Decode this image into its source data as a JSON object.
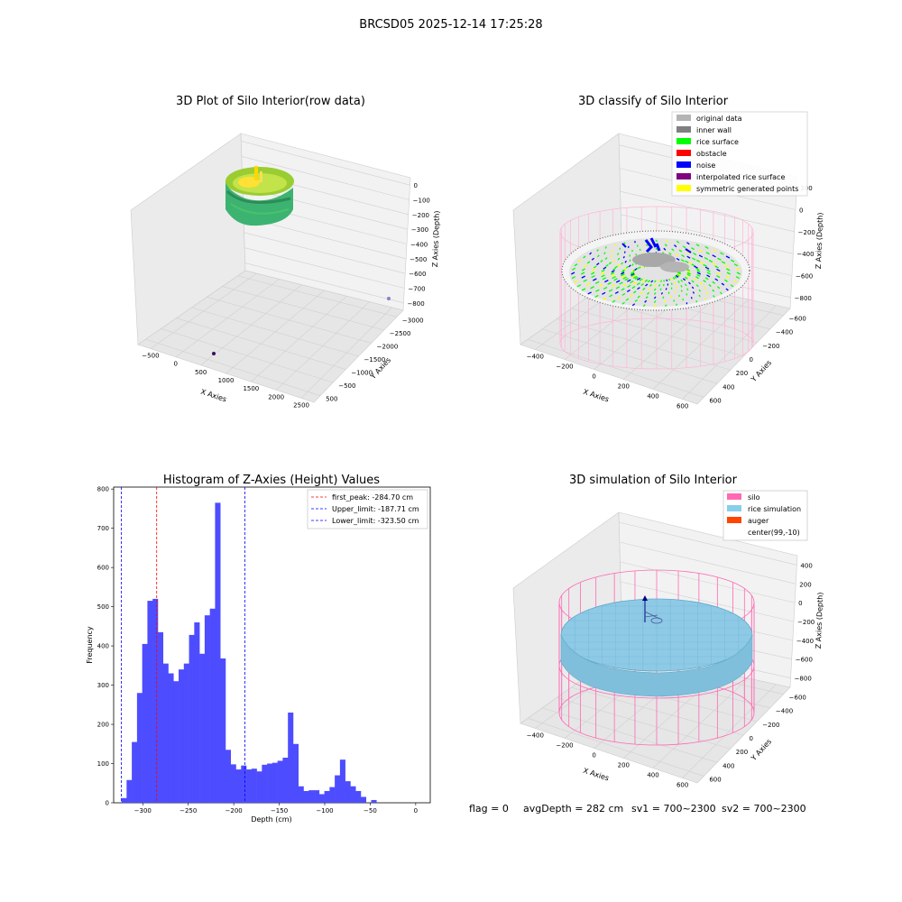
{
  "figure_title": "BRCSD05 2025-12-14 17:25:28",
  "panels": {
    "raw": {
      "title": "3D Plot of Silo Interior(row data)",
      "xlabel": "X Axies",
      "ylabel": "Y Axies",
      "zlabel": "Z Axies (Depth)",
      "xticks": [
        "−500",
        "0",
        "500",
        "1000",
        "1500",
        "2000",
        "2500"
      ],
      "yticks": [
        "500",
        "−500",
        "−1000",
        "−1500",
        "−2000",
        "−2500",
        "−3000"
      ],
      "zticks": [
        "0",
        "−100",
        "−200",
        "−300",
        "−400",
        "−500",
        "−600",
        "−700",
        "−800"
      ]
    },
    "classify": {
      "title": "3D classify of Silo Interior",
      "xlabel": "X Axies",
      "ylabel": "Y Axies",
      "zlabel": "Z Axies (Depth)",
      "xticks": [
        "−400",
        "−200",
        "0",
        "200",
        "400",
        "600"
      ],
      "yticks": [
        "600",
        "400",
        "200",
        "0",
        "−200",
        "−400",
        "−600"
      ],
      "zticks": [
        "200",
        "0",
        "−200",
        "−400",
        "−600",
        "−800"
      ],
      "legend": [
        {
          "label": "original data",
          "color": "#b4b4b4"
        },
        {
          "label": "inner wall",
          "color": "#808080"
        },
        {
          "label": "rice surface",
          "color": "#00ff00"
        },
        {
          "label": "obstacle",
          "color": "#ff0000"
        },
        {
          "label": "noise",
          "color": "#0000ff"
        },
        {
          "label": "interpolated rice surface",
          "color": "#800080"
        },
        {
          "label": "symmetric generated points",
          "color": "#ffff00"
        }
      ]
    },
    "simulation": {
      "title": "3D simulation of Silo Interior",
      "xlabel": "X Axies",
      "ylabel": "Y Axies",
      "zlabel": "Z Axies (Depth)",
      "xticks": [
        "−400",
        "−200",
        "0",
        "200",
        "400",
        "600"
      ],
      "yticks": [
        "600",
        "400",
        "200",
        "0",
        "−200",
        "−400",
        "−600"
      ],
      "zticks": [
        "400",
        "200",
        "0",
        "−200",
        "−400",
        "−600",
        "−800"
      ],
      "legend": [
        {
          "label": "silo",
          "color": "#ff69b4"
        },
        {
          "label": "rice simulation",
          "color": "#87ceeb"
        },
        {
          "label": "auger",
          "color": "#ff4500"
        },
        {
          "label": "center(99,-10)",
          "color": ""
        }
      ]
    }
  },
  "status": {
    "flag": "flag = 0",
    "avg_depth": "avgDepth = 282 cm",
    "sv1": "sv1 = 700~2300",
    "sv2": "sv2 = 700~2300"
  },
  "chart_data": {
    "type": "bar",
    "title": "Histogram of Z-Axies (Height) Values",
    "xlabel": "Depth (cm)",
    "ylabel": "Frequency",
    "xlim": [
      -332,
      16
    ],
    "ylim": [
      0,
      805
    ],
    "xticks": [
      -300,
      -250,
      -200,
      -150,
      -100,
      -50,
      0
    ],
    "yticks": [
      0,
      100,
      200,
      300,
      400,
      500,
      600,
      700,
      800
    ],
    "bar_color": "#4d4dff",
    "bin_width": 5.72,
    "bin_start": -323.5,
    "values": [
      12,
      58,
      155,
      280,
      405,
      515,
      520,
      435,
      355,
      330,
      310,
      340,
      355,
      428,
      460,
      380,
      478,
      495,
      765,
      368,
      135,
      98,
      85,
      95,
      85,
      87,
      80,
      97,
      100,
      102,
      107,
      115,
      230,
      150,
      42,
      30,
      32,
      32,
      22,
      30,
      40,
      70,
      110,
      55,
      42,
      30,
      15,
      0,
      7
    ],
    "vlines": [
      {
        "label": "first_peak: -284.70 cm",
        "x": -284.7,
        "color": "#ff0000"
      },
      {
        "label": "Upper_limit: -187.71 cm",
        "x": -187.71,
        "color": "#0000ff"
      },
      {
        "label": "Lower_limit: -323.50 cm",
        "x": -323.5,
        "color": "#0000ff"
      }
    ],
    "legend_position": "upper right"
  }
}
